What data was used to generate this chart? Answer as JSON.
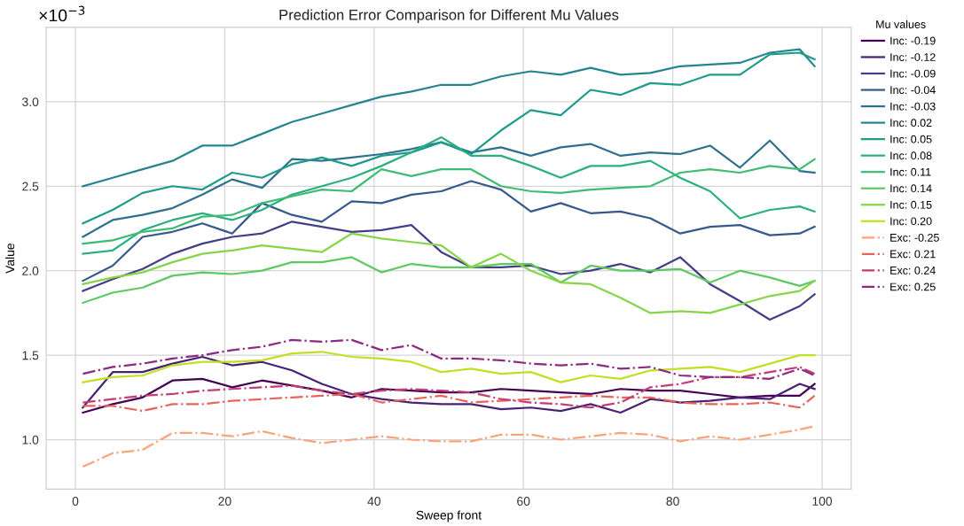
{
  "chart_data": {
    "type": "line",
    "title": "Prediction Error Comparison for Different Mu Values",
    "xlabel": "Sweep front",
    "ylabel": "Value",
    "legend_title": "Mu values",
    "annotations": [
      "×10$^{−3}$"
    ],
    "x": [
      1,
      5,
      9,
      13,
      17,
      21,
      25,
      29,
      33,
      37,
      41,
      45,
      49,
      53,
      57,
      61,
      65,
      69,
      73,
      77,
      81,
      85,
      89,
      93,
      97,
      99
    ],
    "xlim": [
      -3.9,
      103.9
    ],
    "xticks": [
      0,
      20,
      40,
      60,
      80,
      100
    ],
    "ylim": [
      0.707,
      3.44
    ],
    "yticks": [
      {
        "value": 1,
        "label": "1.0"
      },
      1.5,
      {
        "value": 2,
        "label": "2.0"
      },
      2.5,
      {
        "value": 3,
        "label": "3.0"
      }
    ],
    "grid": true,
    "legend": "right",
    "marker": "none",
    "series": [
      {
        "name": "Inc: -0.19",
        "color": "#440154",
        "line_style": "solid",
        "values": [
          1.16,
          1.21,
          1.25,
          1.35,
          1.36,
          1.31,
          1.35,
          1.32,
          1.29,
          1.25,
          1.3,
          1.29,
          1.28,
          1.28,
          1.3,
          1.29,
          1.28,
          1.27,
          1.3,
          1.29,
          1.29,
          1.27,
          1.25,
          1.26,
          1.26,
          1.33
        ]
      },
      {
        "name": "Inc: -0.12",
        "color": "#482173",
        "line_style": "solid",
        "values": [
          1.19,
          1.4,
          1.4,
          1.45,
          1.49,
          1.44,
          1.46,
          1.41,
          1.33,
          1.27,
          1.24,
          1.22,
          1.21,
          1.21,
          1.18,
          1.19,
          1.17,
          1.21,
          1.16,
          1.24,
          1.22,
          1.23,
          1.25,
          1.24,
          1.33,
          1.3
        ]
      },
      {
        "name": "Inc: -0.09",
        "color": "#433e85",
        "line_style": "solid",
        "values": [
          1.88,
          1.95,
          2.01,
          2.1,
          2.16,
          2.2,
          2.22,
          2.29,
          2.26,
          2.23,
          2.24,
          2.27,
          2.11,
          2.02,
          2.02,
          2.03,
          1.98,
          2.0,
          2.04,
          1.99,
          2.08,
          1.92,
          1.82,
          1.71,
          1.79,
          1.86
        ]
      },
      {
        "name": "Inc: -0.04",
        "color": "#38588c",
        "line_style": "solid",
        "values": [
          1.94,
          2.03,
          2.2,
          2.23,
          2.28,
          2.22,
          2.4,
          2.33,
          2.29,
          2.41,
          2.4,
          2.45,
          2.47,
          2.53,
          2.48,
          2.35,
          2.4,
          2.34,
          2.35,
          2.31,
          2.22,
          2.26,
          2.27,
          2.21,
          2.22,
          2.26
        ]
      },
      {
        "name": "Inc: -0.03",
        "color": "#2d708e",
        "line_style": "solid",
        "values": [
          2.2,
          2.3,
          2.33,
          2.37,
          2.45,
          2.54,
          2.49,
          2.66,
          2.65,
          2.67,
          2.69,
          2.72,
          2.76,
          2.7,
          2.73,
          2.68,
          2.73,
          2.75,
          2.68,
          2.7,
          2.69,
          2.74,
          2.61,
          2.77,
          2.59,
          2.58
        ]
      },
      {
        "name": "Inc: 0.02",
        "color": "#25858e",
        "line_style": "solid",
        "values": [
          2.5,
          2.55,
          2.6,
          2.65,
          2.74,
          2.74,
          2.81,
          2.88,
          2.93,
          2.98,
          3.03,
          3.06,
          3.1,
          3.1,
          3.15,
          3.18,
          3.16,
          3.2,
          3.16,
          3.17,
          3.21,
          3.22,
          3.23,
          3.29,
          3.31,
          3.21
        ]
      },
      {
        "name": "Inc: 0.05",
        "color": "#1e9b8a",
        "line_style": "solid",
        "values": [
          2.28,
          2.36,
          2.46,
          2.5,
          2.48,
          2.58,
          2.55,
          2.63,
          2.67,
          2.62,
          2.68,
          2.7,
          2.76,
          2.69,
          2.83,
          2.95,
          2.92,
          3.07,
          3.04,
          3.11,
          3.1,
          3.16,
          3.16,
          3.28,
          3.29,
          3.25
        ]
      },
      {
        "name": "Inc: 0.08",
        "color": "#2ab07f",
        "line_style": "solid",
        "values": [
          2.1,
          2.12,
          2.24,
          2.3,
          2.34,
          2.3,
          2.36,
          2.45,
          2.5,
          2.55,
          2.62,
          2.7,
          2.79,
          2.68,
          2.68,
          2.62,
          2.55,
          2.62,
          2.62,
          2.65,
          2.55,
          2.47,
          2.31,
          2.36,
          2.38,
          2.35
        ]
      },
      {
        "name": "Inc: 0.11",
        "color": "#3fbc73",
        "line_style": "solid",
        "values": [
          2.16,
          2.18,
          2.23,
          2.25,
          2.32,
          2.33,
          2.4,
          2.44,
          2.48,
          2.47,
          2.6,
          2.56,
          2.6,
          2.6,
          2.5,
          2.47,
          2.46,
          2.48,
          2.49,
          2.5,
          2.58,
          2.6,
          2.58,
          2.62,
          2.6,
          2.66
        ]
      },
      {
        "name": "Inc: 0.14",
        "color": "#5ec962",
        "line_style": "solid",
        "values": [
          1.81,
          1.87,
          1.9,
          1.97,
          1.99,
          1.98,
          2.0,
          2.05,
          2.05,
          2.08,
          1.99,
          2.04,
          2.02,
          2.02,
          2.04,
          2.04,
          1.93,
          2.03,
          2.0,
          2.0,
          2.01,
          1.93,
          2.0,
          1.96,
          1.91,
          1.94
        ]
      },
      {
        "name": "Inc: 0.15",
        "color": "#86d549",
        "line_style": "solid",
        "values": [
          1.92,
          1.96,
          1.99,
          2.05,
          2.1,
          2.12,
          2.15,
          2.13,
          2.11,
          2.22,
          2.19,
          2.17,
          2.15,
          2.02,
          2.1,
          2.0,
          1.93,
          1.92,
          1.84,
          1.75,
          1.76,
          1.75,
          1.8,
          1.85,
          1.88,
          1.94
        ]
      },
      {
        "name": "Inc: 0.20",
        "color": "#c2df23",
        "line_style": "solid",
        "values": [
          1.34,
          1.37,
          1.38,
          1.44,
          1.46,
          1.46,
          1.47,
          1.51,
          1.52,
          1.49,
          1.48,
          1.46,
          1.4,
          1.42,
          1.39,
          1.4,
          1.34,
          1.38,
          1.36,
          1.41,
          1.42,
          1.43,
          1.4,
          1.45,
          1.5,
          1.5
        ]
      },
      {
        "name": "Exc: -0.25",
        "color": "#f7a47c",
        "line_style": "dashdot",
        "values": [
          0.84,
          0.92,
          0.94,
          1.04,
          1.04,
          1.02,
          1.05,
          1.01,
          0.98,
          1.0,
          1.02,
          1.0,
          0.99,
          0.99,
          1.03,
          1.03,
          1.0,
          1.02,
          1.04,
          1.03,
          0.99,
          1.02,
          1.0,
          1.03,
          1.06,
          1.08
        ]
      },
      {
        "name": "Exc: 0.21",
        "color": "#e8645a",
        "line_style": "dashdot",
        "values": [
          1.2,
          1.2,
          1.17,
          1.21,
          1.21,
          1.23,
          1.24,
          1.25,
          1.26,
          1.27,
          1.22,
          1.24,
          1.26,
          1.22,
          1.23,
          1.24,
          1.25,
          1.26,
          1.25,
          1.25,
          1.22,
          1.21,
          1.21,
          1.22,
          1.19,
          1.26
        ]
      },
      {
        "name": "Exc: 0.24",
        "color": "#c43c75",
        "line_style": "dashdot",
        "values": [
          1.22,
          1.24,
          1.26,
          1.27,
          1.29,
          1.3,
          1.31,
          1.32,
          1.29,
          1.27,
          1.29,
          1.3,
          1.29,
          1.28,
          1.24,
          1.22,
          1.21,
          1.19,
          1.22,
          1.31,
          1.33,
          1.37,
          1.37,
          1.4,
          1.43,
          1.39
        ]
      },
      {
        "name": "Exc: 0.25",
        "color": "#8c2981",
        "line_style": "dashdot",
        "values": [
          1.39,
          1.43,
          1.45,
          1.48,
          1.5,
          1.53,
          1.55,
          1.59,
          1.58,
          1.59,
          1.53,
          1.56,
          1.48,
          1.48,
          1.47,
          1.45,
          1.44,
          1.45,
          1.42,
          1.43,
          1.38,
          1.37,
          1.37,
          1.36,
          1.42,
          1.38
        ]
      }
    ]
  }
}
